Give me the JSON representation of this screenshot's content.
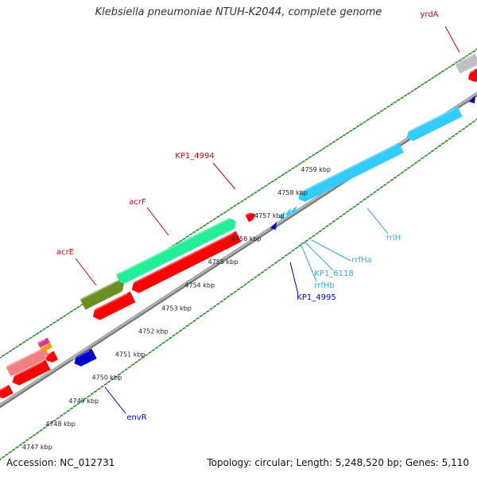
{
  "title": "Klebsiella pneumoniae NTUH-K2044, complete genome",
  "footer": {
    "accession": "Accession: NC_012731",
    "summary": "Topology: circular; Length: 5,248,520 bp; Genes: 5,110"
  },
  "colors": {
    "backbone": "#8c8c8c",
    "cds": "#ff0000",
    "rrna": "#33ccff",
    "trna": "#1a8cff",
    "misc": "#0000dd",
    "acrF": "#22ee99",
    "acrE": "#6b8e23",
    "grey": "#c0c0c0",
    "pink": "#f08080",
    "magenta": "#e0309e",
    "orange": "#ff9900",
    "tick": "#2e8b2e",
    "label_red": "#dd0000",
    "label_cyan": "#33aadd",
    "label_blue": "#0000cc"
  },
  "kbp_ticks": [
    {
      "label": "4747 kbp",
      "kbp": 4747
    },
    {
      "label": "4748 kbp",
      "kbp": 4748
    },
    {
      "label": "4749 kbp",
      "kbp": 4749
    },
    {
      "label": "4750 kbp",
      "kbp": 4750
    },
    {
      "label": "4751 kbp",
      "kbp": 4751
    },
    {
      "label": "4752 kbp",
      "kbp": 4752
    },
    {
      "label": "4753 kbp",
      "kbp": 4753
    },
    {
      "label": "4754 kbp",
      "kbp": 4754
    },
    {
      "label": "4755 kbp",
      "kbp": 4755
    },
    {
      "label": "4756 kbp",
      "kbp": 4756
    },
    {
      "label": "4757 kbp",
      "kbp": 4757
    },
    {
      "label": "4758 kbp",
      "kbp": 4758
    },
    {
      "label": "4759 kbp",
      "kbp": 4759
    }
  ],
  "gene_labels": [
    {
      "name": "yrdA",
      "color": "label_red"
    },
    {
      "name": "KP1_4994",
      "color": "label_red"
    },
    {
      "name": "acrF",
      "color": "label_red"
    },
    {
      "name": "acrE",
      "color": "label_red"
    },
    {
      "name": "rrlH",
      "color": "label_cyan"
    },
    {
      "name": "rrfHa",
      "color": "label_cyan"
    },
    {
      "name": "KP1_6118",
      "color": "label_cyan"
    },
    {
      "name": "rrfHb",
      "color": "label_cyan"
    },
    {
      "name": "KP1_4995",
      "color": "label_blue"
    },
    {
      "name": "envR",
      "color": "label_blue"
    }
  ]
}
